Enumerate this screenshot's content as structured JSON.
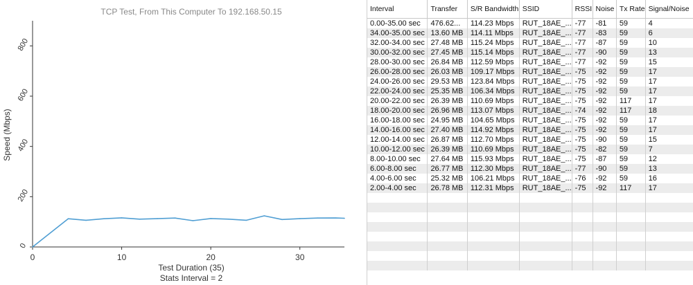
{
  "chart_data": {
    "type": "line",
    "title": "TCP Test,  From This Computer To 192.168.50.15",
    "xlabel": "Test Duration (35)",
    "xlabel2": "Stats Interval = 2",
    "ylabel": "Speed (Mbps)",
    "xlim": [
      0,
      35
    ],
    "ylim": [
      0,
      900
    ],
    "xticks": [
      0,
      10,
      20,
      30
    ],
    "yticks": [
      0,
      200,
      400,
      600,
      800
    ],
    "grid": false,
    "line_color": "#4f9ed3",
    "x": [
      0,
      4,
      6,
      8,
      10,
      12,
      14,
      16,
      18,
      20,
      22,
      24,
      26,
      28,
      30,
      32,
      34,
      35
    ],
    "y": [
      0,
      112.31,
      106.21,
      112.3,
      115.93,
      110.69,
      112.7,
      114.92,
      104.65,
      113.07,
      110.69,
      106.34,
      123.84,
      109.17,
      112.59,
      115.14,
      115.24,
      114.11
    ]
  },
  "table": {
    "columns": [
      "Interval",
      "Transfer",
      "S/R Bandwidth",
      "SSID",
      "RSSI",
      "Noise",
      "Tx Rate",
      "Signal/Noise"
    ],
    "rows": [
      [
        "0.00-35.00 sec",
        "476.62...",
        "114.23 Mbps",
        "RUT_18AE_...",
        "-77",
        "-81",
        "59",
        "4"
      ],
      [
        "34.00-35.00 sec",
        "13.60 MB",
        "114.11 Mbps",
        "RUT_18AE_...",
        "-77",
        "-83",
        "59",
        "6"
      ],
      [
        "32.00-34.00 sec",
        "27.48 MB",
        "115.24 Mbps",
        "RUT_18AE_...",
        "-77",
        "-87",
        "59",
        "10"
      ],
      [
        "30.00-32.00 sec",
        "27.45 MB",
        "115.14 Mbps",
        "RUT_18AE_...",
        "-77",
        "-90",
        "59",
        "13"
      ],
      [
        "28.00-30.00 sec",
        "26.84 MB",
        "112.59 Mbps",
        "RUT_18AE_...",
        "-77",
        "-92",
        "59",
        "15"
      ],
      [
        "26.00-28.00 sec",
        "26.03 MB",
        "109.17 Mbps",
        "RUT_18AE_...",
        "-75",
        "-92",
        "59",
        "17"
      ],
      [
        "24.00-26.00 sec",
        "29.53 MB",
        "123.84 Mbps",
        "RUT_18AE_...",
        "-75",
        "-92",
        "59",
        "17"
      ],
      [
        "22.00-24.00 sec",
        "25.35 MB",
        "106.34 Mbps",
        "RUT_18AE_...",
        "-75",
        "-92",
        "59",
        "17"
      ],
      [
        "20.00-22.00 sec",
        "26.39 MB",
        "110.69 Mbps",
        "RUT_18AE_...",
        "-75",
        "-92",
        "117",
        "17"
      ],
      [
        "18.00-20.00 sec",
        "26.96 MB",
        "113.07 Mbps",
        "RUT_18AE_...",
        "-74",
        "-92",
        "117",
        "18"
      ],
      [
        "16.00-18.00 sec",
        "24.95 MB",
        "104.65 Mbps",
        "RUT_18AE_...",
        "-75",
        "-92",
        "59",
        "17"
      ],
      [
        "14.00-16.00 sec",
        "27.40 MB",
        "114.92 Mbps",
        "RUT_18AE_...",
        "-75",
        "-92",
        "59",
        "17"
      ],
      [
        "12.00-14.00 sec",
        "26.87 MB",
        "112.70 Mbps",
        "RUT_18AE_...",
        "-75",
        "-90",
        "59",
        "15"
      ],
      [
        "10.00-12.00 sec",
        "26.39 MB",
        "110.69 Mbps",
        "RUT_18AE_...",
        "-75",
        "-82",
        "59",
        "7"
      ],
      [
        "8.00-10.00 sec",
        "27.64 MB",
        "115.93 Mbps",
        "RUT_18AE_...",
        "-75",
        "-87",
        "59",
        "12"
      ],
      [
        "6.00-8.00 sec",
        "26.77 MB",
        "112.30 Mbps",
        "RUT_18AE_...",
        "-77",
        "-90",
        "59",
        "13"
      ],
      [
        "4.00-6.00 sec",
        "25.32 MB",
        "106.21 Mbps",
        "RUT_18AE_...",
        "-76",
        "-92",
        "59",
        "16"
      ],
      [
        "2.00-4.00 sec",
        "26.78 MB",
        "112.31 Mbps",
        "RUT_18AE_...",
        "-75",
        "-92",
        "117",
        "17"
      ]
    ]
  }
}
